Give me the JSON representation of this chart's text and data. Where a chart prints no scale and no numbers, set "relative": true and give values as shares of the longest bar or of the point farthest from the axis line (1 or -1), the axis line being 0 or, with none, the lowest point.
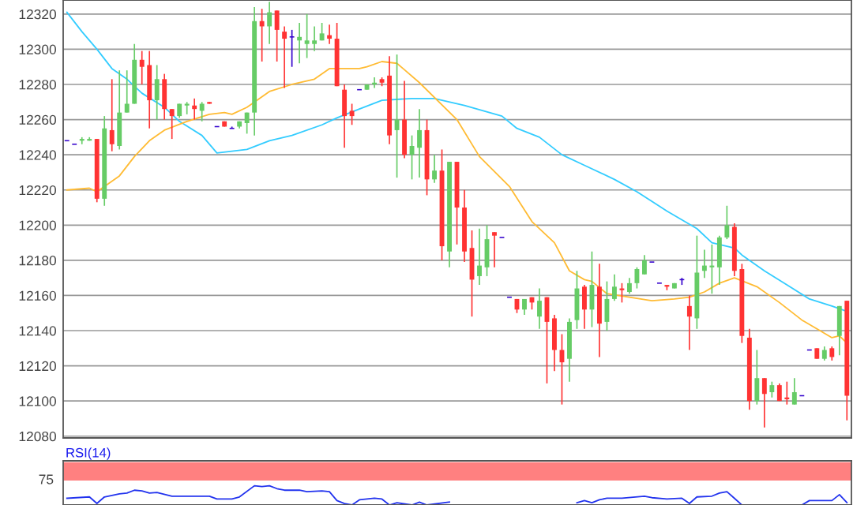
{
  "chart_data": [
    {
      "type": "candlestick",
      "categories": [
        null,
        null,
        null,
        null,
        null,
        null,
        null,
        null,
        null,
        null,
        null,
        null,
        null,
        null,
        null,
        null,
        null,
        null,
        null,
        null,
        null,
        null,
        null,
        null,
        null,
        null,
        null,
        null,
        null,
        null,
        null,
        null,
        null,
        null,
        null,
        null,
        null,
        null,
        null,
        null,
        null,
        null,
        null,
        null,
        null,
        null,
        null,
        null,
        null,
        null,
        null,
        null,
        null,
        null,
        null,
        null,
        null,
        null,
        null,
        null,
        null,
        null,
        null,
        null,
        null,
        null,
        null,
        null,
        null,
        null,
        null,
        null,
        null,
        null,
        null,
        null,
        null,
        null,
        null,
        null,
        null,
        null,
        null,
        null,
        null,
        null,
        null,
        null,
        null,
        null,
        null,
        null,
        null,
        null,
        null,
        null,
        null,
        null,
        null,
        null,
        null,
        null,
        null,
        null,
        null
      ],
      "ohlc": [
        [
          12248,
          12248,
          12248,
          12248
        ],
        [
          12246,
          12246,
          12246,
          12246
        ],
        [
          12248,
          12250,
          12246,
          12249
        ],
        [
          12248,
          12250,
          12248,
          12249
        ],
        [
          12249,
          12249,
          12213,
          12215
        ],
        [
          12215,
          12262,
          12211,
          12255
        ],
        [
          12254,
          12283,
          12242,
          12246
        ],
        [
          12245,
          12288,
          12243,
          12264
        ],
        [
          12264,
          12288,
          12264,
          12269
        ],
        [
          12269,
          12303,
          12269,
          12294
        ],
        [
          12294,
          12299,
          12280,
          12290
        ],
        [
          12291,
          12299,
          12255,
          12271
        ],
        [
          12271,
          12291,
          12260,
          12283
        ],
        [
          12283,
          12286,
          12260,
          12266
        ],
        [
          12266,
          12266,
          12249,
          12262
        ],
        [
          12262,
          12269,
          12261,
          12269
        ],
        [
          12268,
          12270,
          12263,
          12269
        ],
        [
          12268,
          12272,
          12260,
          12266
        ],
        [
          12265,
          12270,
          12259,
          12269
        ],
        [
          12270,
          12270,
          12269,
          12269
        ],
        [
          12256,
          12256,
          12256,
          12256
        ],
        [
          12259,
          12259,
          12256,
          12256
        ],
        [
          12255,
          12256,
          12255,
          12255
        ],
        [
          12256,
          12259,
          12255,
          12259
        ],
        [
          12258,
          12264,
          12252,
          12264
        ],
        [
          12264,
          12324,
          12251,
          12316
        ],
        [
          12316,
          12323,
          12293,
          12313
        ],
        [
          12313,
          12327,
          12303,
          12321
        ],
        [
          12322,
          12322,
          12293,
          12311
        ],
        [
          12310,
          12313,
          12278,
          12306
        ],
        [
          12307,
          12311,
          12290,
          12307
        ],
        [
          12305,
          12315,
          12292,
          12307
        ],
        [
          12303,
          12320,
          12295,
          12305
        ],
        [
          12303,
          12313,
          12299,
          12305
        ],
        [
          12305,
          12315,
          12305,
          12309
        ],
        [
          12308,
          12314,
          12303,
          12306
        ],
        [
          12306,
          12315,
          12279,
          12279
        ],
        [
          12277,
          12280,
          12244,
          12262
        ],
        [
          12265,
          12269,
          12257,
          12262
        ],
        [
          12277,
          12277,
          12277,
          12277
        ],
        [
          12277,
          12280,
          12277,
          12280
        ],
        [
          12280,
          12284,
          12278,
          12281
        ],
        [
          12283,
          12284,
          12279,
          12281
        ],
        [
          12285,
          12296,
          12246,
          12251
        ],
        [
          12254,
          12297,
          12227,
          12260
        ],
        [
          12260,
          12282,
          12238,
          12240
        ],
        [
          12240,
          12251,
          12226,
          12245
        ],
        [
          12244,
          12266,
          12227,
          12254
        ],
        [
          12254,
          12260,
          12217,
          12226
        ],
        [
          12226,
          12240,
          12224,
          12231
        ],
        [
          12231,
          12243,
          12180,
          12188
        ],
        [
          12185,
          12236,
          12176,
          12236
        ],
        [
          12236,
          12236,
          12189,
          12210
        ],
        [
          12210,
          12220,
          12179,
          12185
        ],
        [
          12187,
          12197,
          12148,
          12169
        ],
        [
          12171,
          12198,
          12166,
          12177
        ],
        [
          12176,
          12200,
          12171,
          12192
        ],
        [
          12196,
          12196,
          12176,
          12194
        ],
        [
          12193,
          12193,
          12193,
          12193
        ],
        [
          12159,
          12159,
          12159,
          12159
        ],
        [
          12158,
          12158,
          12150,
          12152
        ],
        [
          12152,
          12158,
          12149,
          12158
        ],
        [
          12159,
          12159,
          12152,
          12156
        ],
        [
          12148,
          12164,
          12141,
          12157
        ],
        [
          12159,
          12159,
          12110,
          12145
        ],
        [
          12147,
          12149,
          12117,
          12129
        ],
        [
          12129,
          12138,
          12098,
          12122
        ],
        [
          12124,
          12147,
          12111,
          12145
        ],
        [
          12146,
          12174,
          12141,
          12164
        ],
        [
          12165,
          12166,
          12141,
          12152
        ],
        [
          12152,
          12185,
          12142,
          12166
        ],
        [
          12165,
          12178,
          12125,
          12144
        ],
        [
          12145,
          12168,
          12140,
          12158
        ],
        [
          12158,
          12172,
          12157,
          12165
        ],
        [
          12164,
          12167,
          12156,
          12163
        ],
        [
          12162,
          12170,
          12161,
          12167
        ],
        [
          12167,
          12176,
          12164,
          12175
        ],
        [
          12172,
          12183,
          12172,
          12180
        ],
        [
          12179,
          12179,
          12179,
          12179
        ],
        [
          12167,
          12167,
          12167,
          12167
        ],
        [
          12166,
          12166,
          12163,
          12165
        ],
        [
          12164,
          12167,
          12164,
          12167
        ],
        [
          12169,
          12170,
          12166,
          12169
        ],
        [
          12154,
          12160,
          12129,
          12148
        ],
        [
          12147,
          12194,
          12141,
          12173
        ],
        [
          12174,
          12186,
          12170,
          12177
        ],
        [
          12176,
          12189,
          12161,
          12177
        ],
        [
          12176,
          12194,
          12166,
          12193
        ],
        [
          12193,
          12211,
          12192,
          12200
        ],
        [
          12199,
          12201,
          12171,
          12174
        ],
        [
          12175,
          12178,
          12133,
          12137
        ],
        [
          12136,
          12141,
          12095,
          12100
        ],
        [
          12100,
          12129,
          12098,
          12113
        ],
        [
          12113,
          12113,
          12085,
          12104
        ],
        [
          12105,
          12111,
          12102,
          12109
        ],
        [
          12109,
          12110,
          12100,
          12100
        ],
        [
          12102,
          12111,
          12098,
          12101
        ],
        [
          12098,
          12113,
          12098,
          12105
        ],
        [
          12103,
          12103,
          12103,
          12103
        ],
        [
          12129,
          12129,
          12129,
          12129
        ],
        [
          12130,
          12130,
          12124,
          12124
        ],
        [
          12124,
          12131,
          12123,
          12129
        ],
        [
          12130,
          12131,
          12123,
          12125
        ],
        [
          12137,
          12154,
          12126,
          12154
        ],
        [
          12157,
          12157,
          12089,
          12103
        ]
      ],
      "colors": [
        "#3300cc",
        "#3300cc",
        "#66cc66",
        "#66cc66",
        "#ff3333",
        "#66cc66",
        "#ff3333",
        "#66cc66",
        "#66cc66",
        "#66cc66",
        "#ff3333",
        "#ff3333",
        "#66cc66",
        "#ff3333",
        "#ff3333",
        "#66cc66",
        "#66cc66",
        "#ff3333",
        "#66cc66",
        "#ff3333",
        "#3300cc",
        "#ff3333",
        "#3300cc",
        "#66cc66",
        "#66cc66",
        "#66cc66",
        "#ff3333",
        "#66cc66",
        "#ff3333",
        "#ff3333",
        "#3300cc",
        "#66cc66",
        "#66cc66",
        "#66cc66",
        "#66cc66",
        "#ff3333",
        "#ff3333",
        "#ff3333",
        "#ff3333",
        "#3300cc",
        "#66cc66",
        "#66cc66",
        "#ff3333",
        "#ff3333",
        "#66cc66",
        "#ff3333",
        "#66cc66",
        "#66cc66",
        "#ff3333",
        "#66cc66",
        "#ff3333",
        "#66cc66",
        "#ff3333",
        "#ff3333",
        "#ff3333",
        "#66cc66",
        "#66cc66",
        "#ff3333",
        "#3300cc",
        "#3300cc",
        "#ff3333",
        "#66cc66",
        "#ff3333",
        "#66cc66",
        "#ff3333",
        "#ff3333",
        "#ff3333",
        "#66cc66",
        "#66cc66",
        "#ff3333",
        "#66cc66",
        "#ff3333",
        "#66cc66",
        "#66cc66",
        "#ff3333",
        "#66cc66",
        "#66cc66",
        "#66cc66",
        "#3300cc",
        "#3300cc",
        "#ff3333",
        "#66cc66",
        "#3300cc",
        "#ff3333",
        "#66cc66",
        "#66cc66",
        "#66cc66",
        "#66cc66",
        "#66cc66",
        "#ff3333",
        "#ff3333",
        "#ff3333",
        "#66cc66",
        "#ff3333",
        "#66cc66",
        "#ff3333",
        "#ff3333",
        "#66cc66",
        "#3300cc",
        "#3300cc",
        "#ff3333",
        "#66cc66",
        "#ff3333",
        "#66cc66",
        "#ff3333"
      ],
      "series": [
        {
          "type": "line",
          "color": "#33ccff",
          "values": [
            12321,
            null,
            12310,
            null,
            12300,
            null,
            12289,
            null,
            12283,
            null,
            12275,
            null,
            null,
            12267,
            null,
            12259,
            null,
            null,
            12251,
            null,
            12241,
            null,
            null,
            null,
            12243,
            null,
            null,
            12248,
            null,
            null,
            12251,
            null,
            null,
            null,
            12257,
            null,
            12261,
            null,
            null,
            12266,
            null,
            null,
            12271,
            null,
            null,
            null,
            12272,
            null,
            null,
            12272,
            null,
            null,
            null,
            12268,
            null,
            null,
            null,
            null,
            12262,
            null,
            12255,
            null,
            null,
            12250,
            null,
            null,
            12240,
            null,
            null,
            12234,
            null,
            null,
            null,
            12226,
            null,
            null,
            12219,
            null,
            null,
            null,
            12208,
            null,
            null,
            null,
            12198,
            null,
            12190,
            null,
            null,
            12187,
            12183,
            null,
            null,
            12174,
            null,
            null,
            12166,
            null,
            null,
            12158,
            null,
            null,
            12154,
            null,
            12151
          ]
        },
        {
          "type": "line",
          "color": "#ffbb33",
          "values": [
            12220,
            null,
            null,
            12221,
            12219,
            null,
            null,
            12228,
            null,
            12239,
            null,
            12248,
            null,
            12254,
            null,
            null,
            12259,
            null,
            null,
            12263,
            null,
            12264,
            12263,
            null,
            12267,
            null,
            null,
            12276,
            null,
            null,
            12280,
            null,
            null,
            12283,
            null,
            12289,
            null,
            null,
            null,
            12289,
            12290,
            null,
            12293,
            null,
            12292,
            null,
            null,
            12281,
            null,
            null,
            null,
            null,
            12260,
            null,
            null,
            12239,
            null,
            null,
            null,
            12222,
            null,
            null,
            12202,
            null,
            null,
            12190,
            null,
            12174,
            null,
            12169,
            12168,
            null,
            12161,
            null,
            null,
            12159,
            null,
            null,
            12157,
            null,
            null,
            12158,
            null,
            12159,
            null,
            12162,
            null,
            12167,
            null,
            12170,
            null,
            null,
            12165,
            null,
            null,
            12156,
            null,
            null,
            12146,
            null,
            12141,
            null,
            12136,
            12137,
            12133
          ]
        }
      ],
      "ylim": [
        12079,
        12328
      ],
      "yticks": [
        12080,
        12100,
        12120,
        12140,
        12160,
        12180,
        12200,
        12220,
        12240,
        12260,
        12280,
        12300,
        12320
      ],
      "grid": "y",
      "tick_labels": "y"
    },
    {
      "type": "line",
      "title": "RSI(14)",
      "relative": true,
      "categories": [
        null,
        null,
        null,
        null,
        null,
        null,
        null,
        null,
        null,
        null,
        null,
        null,
        null,
        null,
        null,
        null,
        null,
        null,
        null,
        null,
        null,
        null,
        null,
        null,
        null,
        null,
        null,
        null,
        null,
        null,
        null,
        null,
        null,
        null,
        null,
        null,
        null,
        null,
        null,
        null,
        null,
        null,
        null,
        null,
        null,
        null,
        null,
        null,
        null,
        null,
        null,
        null,
        null,
        null,
        null,
        null,
        null,
        null,
        null,
        null,
        null,
        null,
        null,
        null,
        null,
        null,
        null,
        null,
        null,
        null,
        null,
        null,
        null,
        null,
        null,
        null,
        null,
        null,
        null,
        null,
        null,
        null,
        null,
        null,
        null,
        null,
        null,
        null,
        null,
        null,
        null,
        null,
        null,
        null,
        null,
        null,
        null,
        null,
        null,
        null,
        null,
        null,
        null,
        null,
        null
      ],
      "series": [
        {
          "color": "#2233ee",
          "values": [
            0.35,
            null,
            null,
            0.42,
            0.08,
            0.42,
            null,
            0.58,
            0.62,
            0.77,
            0.73,
            0.62,
            0.65,
            null,
            0.46,
            0.46,
            null,
            null,
            null,
            0.46,
            0.31,
            null,
            0.31,
            0.42,
            null,
            1,
            0.96,
            1,
            0.85,
            0.77,
            null,
            0.77,
            0.69,
            null,
            0.73,
            0.69,
            0.23,
            0.08,
            0,
            0.27,
            null,
            0.35,
            0.31,
            0,
            0.12,
            null,
            0,
            0.15,
            0,
            null,
            null,
            0.15,
            null,
            null,
            null,
            null,
            null,
            null,
            null,
            null,
            null,
            null,
            null,
            null,
            null,
            null,
            null,
            null,
            null,
            null,
            null,
            null,
            null,
            null,
            null,
            null,
            null,
            null,
            null,
            null,
            null,
            null,
            null,
            null,
            null,
            null,
            null,
            null,
            null,
            null,
            null,
            null,
            null,
            null,
            null,
            null,
            null,
            null,
            null,
            null,
            null,
            null,
            null,
            null,
            null
          ]
        },
        {
          "color": "#2233ee",
          "values": [
            null,
            null,
            null,
            null,
            null,
            null,
            null,
            null,
            null,
            null,
            null,
            null,
            null,
            null,
            null,
            null,
            null,
            null,
            null,
            null,
            null,
            null,
            null,
            null,
            null,
            null,
            null,
            null,
            null,
            null,
            null,
            null,
            null,
            null,
            null,
            null,
            null,
            null,
            null,
            null,
            null,
            null,
            null,
            null,
            null,
            null,
            null,
            null,
            null,
            null,
            null,
            null,
            null,
            null,
            null,
            null,
            null,
            null,
            null,
            null,
            null,
            null,
            null,
            null,
            null,
            null,
            null,
            null,
            0.12,
            0.23,
            0.12,
            0.27,
            0.35,
            null,
            0.35,
            null,
            null,
            0.46,
            0.38,
            null,
            0.31,
            null,
            0.35,
            0.08,
            0.42,
            null,
            0.46,
            0.62,
            0.69,
            0.35,
            0,
            null,
            null,
            null,
            null,
            null,
            null,
            null,
            null,
            null,
            null,
            null,
            null,
            null,
            null
          ]
        },
        {
          "color": "#2233ee",
          "values": [
            null,
            null,
            null,
            null,
            null,
            null,
            null,
            null,
            null,
            null,
            null,
            null,
            null,
            null,
            null,
            null,
            null,
            null,
            null,
            null,
            null,
            null,
            null,
            null,
            null,
            null,
            null,
            null,
            null,
            null,
            null,
            null,
            null,
            null,
            null,
            null,
            null,
            null,
            null,
            null,
            null,
            null,
            null,
            null,
            null,
            null,
            null,
            null,
            null,
            null,
            null,
            null,
            null,
            null,
            null,
            null,
            null,
            null,
            null,
            null,
            null,
            null,
            null,
            null,
            null,
            null,
            null,
            null,
            null,
            null,
            null,
            null,
            null,
            null,
            null,
            null,
            null,
            null,
            null,
            null,
            null,
            null,
            null,
            null,
            null,
            null,
            null,
            null,
            null,
            null,
            null,
            null,
            null,
            null,
            null,
            null,
            null,
            null,
            0,
            0.23,
            null,
            null,
            0.23,
            0.54,
            0.12
          ]
        }
      ],
      "bands": [
        {
          "axis": "y",
          "from": 1.27,
          "to": 2.23,
          "color": "#ff8080"
        }
      ],
      "annotations": [
        "75"
      ]
    }
  ]
}
